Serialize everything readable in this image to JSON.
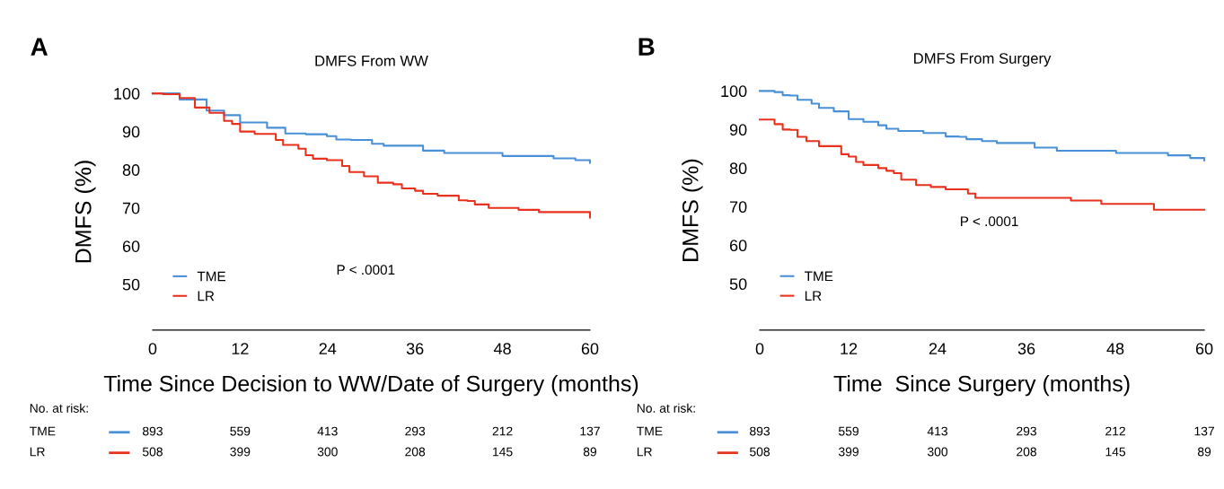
{
  "chart_data": [
    {
      "type": "step",
      "title": "DMFS From WW",
      "xlabel": "Time Since Decision to WW/Date of Surgery (months)",
      "ylabel": "DMFS (%)",
      "xlim": [
        0,
        60
      ],
      "xticks": [
        0,
        12,
        24,
        36,
        48,
        60
      ],
      "ylim": [
        38,
        100
      ],
      "yticks": [
        50,
        60,
        70,
        80,
        90,
        100
      ],
      "grid": false,
      "legend": "bottom left",
      "series": [
        {
          "name": "TME",
          "color": "#4a90d9",
          "x": [
            0,
            3.7,
            7.4,
            9.8,
            12,
            15.7,
            18.2,
            21,
            23.9,
            25.2,
            27.2,
            30.1,
            31.7,
            36,
            37.1,
            39.1,
            40,
            46.2,
            48,
            54,
            55,
            57.2,
            58,
            59,
            60
          ],
          "values": [
            100,
            98.4,
            95.5,
            94.3,
            92.4,
            91.0,
            89.5,
            89.3,
            88.8,
            87.9,
            87.8,
            86.8,
            86.3,
            86.3,
            85.0,
            85.0,
            84.4,
            84.4,
            83.6,
            83.6,
            83.0,
            83.0,
            82.5,
            82.5,
            81.8
          ]
        },
        {
          "name": "LR",
          "color": "#e8321e",
          "x": [
            0,
            1.4,
            3.7,
            5.8,
            7.8,
            9.8,
            10.9,
            12,
            13,
            14,
            16.9,
            17.9,
            19,
            20,
            21,
            22,
            23.9,
            26,
            27,
            29,
            30.9,
            33,
            34.2,
            36,
            37.1,
            38.3,
            39.1,
            40.1,
            42,
            43.2,
            44.2,
            45.2,
            46.1,
            49.1,
            50.2,
            52.2,
            53,
            58,
            60
          ],
          "values": [
            100,
            99.8,
            98.8,
            96.3,
            94.9,
            92.8,
            92.0,
            90.0,
            90.0,
            89.4,
            87.8,
            86.5,
            86.5,
            85.5,
            83.8,
            82.9,
            82.5,
            81.0,
            79.4,
            78.3,
            76.6,
            76.2,
            75.1,
            74.5,
            73.7,
            73.7,
            73.2,
            73.2,
            72.0,
            71.8,
            70.9,
            70.9,
            70.0,
            70.0,
            69.5,
            69.5,
            68.9,
            68.9,
            67.5
          ]
        }
      ],
      "annotations": [
        "A",
        "P < .0001",
        "No. at risk:",
        "TME",
        "893",
        "559",
        "413",
        "293",
        "212",
        "137",
        "LR",
        "508",
        "399",
        "300",
        "208",
        "145",
        "89"
      ]
    },
    {
      "type": "step",
      "title": "DMFS From Surgery",
      "xlabel": "Time  Since Surgery (months)",
      "ylabel": "DMFS (%)",
      "xlim": [
        0,
        60
      ],
      "xticks": [
        0,
        12,
        24,
        36,
        48,
        60
      ],
      "ylim": [
        38,
        100
      ],
      "yticks": [
        50,
        60,
        70,
        80,
        90,
        100
      ],
      "grid": false,
      "legend": "bottom left",
      "series": [
        {
          "name": "TME",
          "color": "#4a90d9",
          "x": [
            0,
            2,
            3.1,
            4.1,
            5.1,
            7,
            8,
            10,
            12,
            14,
            16,
            17.1,
            18.7,
            21.1,
            22.1,
            23.9,
            25.1,
            26.9,
            27.9,
            30,
            31.2,
            32,
            36,
            37.1,
            39.1,
            40.1,
            46.1,
            48.1,
            54.1,
            55.1,
            57.1,
            58.1,
            58.9,
            60
          ],
          "values": [
            100,
            99.7,
            98.9,
            98.8,
            97.7,
            96.7,
            95.6,
            94.7,
            92.7,
            92.0,
            91.1,
            90.2,
            89.6,
            89.6,
            89.1,
            89.1,
            88.2,
            88.1,
            87.5,
            87.0,
            87.0,
            86.5,
            86.5,
            85.3,
            85.3,
            84.5,
            84.5,
            83.9,
            83.9,
            83.3,
            83.3,
            82.6,
            82.6,
            82.0
          ]
        },
        {
          "name": "LR",
          "color": "#e8321e",
          "x": [
            0,
            2,
            3.1,
            4.1,
            5.1,
            6.3,
            8,
            9,
            11,
            12,
            13,
            14,
            16,
            17.1,
            18.1,
            19.1,
            20.1,
            21.1,
            22.1,
            23.1,
            24.1,
            25.1,
            26.1,
            28.1,
            29.1,
            41,
            42,
            45,
            46.1,
            52.2,
            53.2,
            60
          ],
          "values": [
            92.6,
            91.4,
            90.0,
            89.9,
            88.1,
            87.0,
            85.7,
            85.7,
            83.6,
            83.0,
            81.6,
            80.8,
            80.0,
            79.3,
            78.7,
            77.0,
            77.0,
            75.6,
            75.6,
            75.1,
            75.1,
            74.5,
            74.5,
            73.4,
            72.3,
            72.3,
            71.6,
            71.6,
            70.7,
            70.7,
            69.2,
            69.2
          ]
        }
      ],
      "annotations": [
        "B",
        "P < .0001",
        "No. at risk:",
        "TME",
        "893",
        "559",
        "413",
        "293",
        "212",
        "137",
        "LR",
        "508",
        "399",
        "300",
        "208",
        "145",
        "89"
      ]
    }
  ]
}
